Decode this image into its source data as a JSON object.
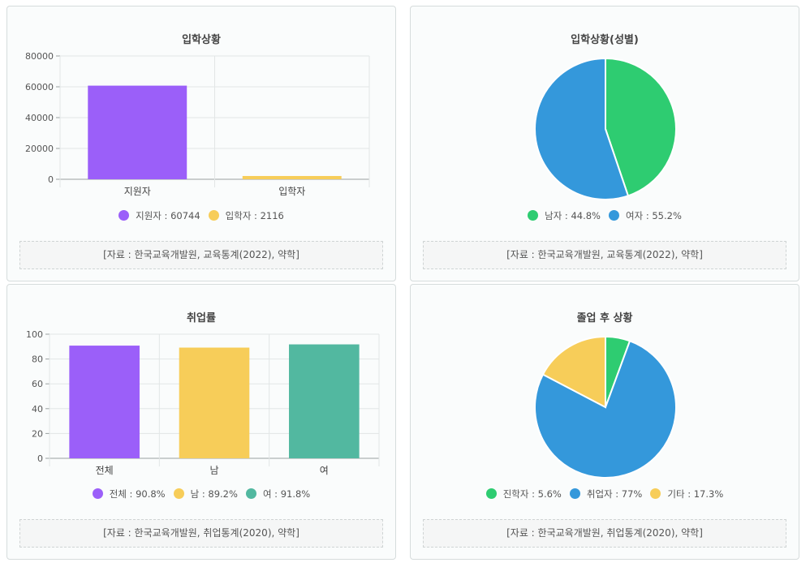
{
  "charts": [
    {
      "title": "입학상황",
      "source": "[자료 : 한국교육개발원, 교육통계(2022), 약학]",
      "chart_data": {
        "type": "bar",
        "categories": [
          "지원자",
          "입학자"
        ],
        "values": [
          60744,
          2116
        ],
        "colors": [
          "#9b5ff9",
          "#f7cd59"
        ],
        "yticks": [
          0,
          20000,
          40000,
          60000,
          80000
        ],
        "ylim": [
          0,
          80000
        ],
        "legend": [
          {
            "label": "지원자 : 60744",
            "color": "#9b5ff9"
          },
          {
            "label": "입학자 : 2116",
            "color": "#f7cd59"
          }
        ]
      }
    },
    {
      "title": "입학상황(성별)",
      "source": "[자료 : 한국교육개발원, 교육통계(2022), 약학]",
      "chart_data": {
        "type": "pie",
        "labels": [
          "남자",
          "여자"
        ],
        "values": [
          44.8,
          55.2
        ],
        "colors": [
          "#2ecc71",
          "#3498db"
        ],
        "legend": [
          {
            "label": "남자 : 44.8%",
            "color": "#2ecc71"
          },
          {
            "label": "여자 : 55.2%",
            "color": "#3498db"
          }
        ]
      }
    },
    {
      "title": "취업률",
      "source": "[자료 : 한국교육개발원, 취업통계(2020), 약학]",
      "chart_data": {
        "type": "bar",
        "categories": [
          "전체",
          "남",
          "여"
        ],
        "values": [
          90.8,
          89.2,
          91.8
        ],
        "colors": [
          "#9b5ff9",
          "#f7cd59",
          "#52b8a0"
        ],
        "yticks": [
          0,
          20,
          40,
          60,
          80,
          100
        ],
        "ylim": [
          0,
          100
        ],
        "legend": [
          {
            "label": "전체 : 90.8%",
            "color": "#9b5ff9"
          },
          {
            "label": "남 : 89.2%",
            "color": "#f7cd59"
          },
          {
            "label": "여 : 91.8%",
            "color": "#52b8a0"
          }
        ]
      }
    },
    {
      "title": "졸업 후 상황",
      "source": "[자료 : 한국교육개발원, 취업통계(2020), 약학]",
      "chart_data": {
        "type": "pie",
        "labels": [
          "진학자",
          "취업자",
          "기타"
        ],
        "values": [
          5.6,
          77,
          17.3
        ],
        "colors": [
          "#2ecc71",
          "#3498db",
          "#f7cd59"
        ],
        "legend": [
          {
            "label": "진학자 : 5.6%",
            "color": "#2ecc71"
          },
          {
            "label": "취업자 : 77%",
            "color": "#3498db"
          },
          {
            "label": "기타 : 17.3%",
            "color": "#f7cd59"
          }
        ]
      }
    }
  ]
}
